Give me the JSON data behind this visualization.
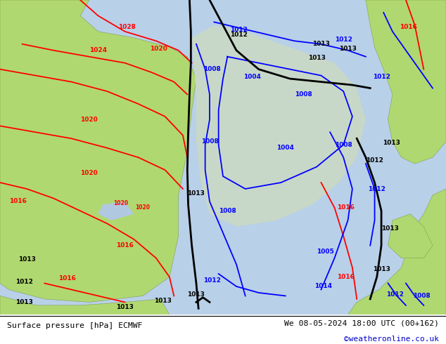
{
  "title_left": "Surface pressure [hPa] ECMWF",
  "title_right": "We 08-05-2024 18:00 UTC (00+162)",
  "watermark": "©weatheronline.co.uk",
  "footer_bg": "#ffffff",
  "map_sea_color": "#b8d0e8",
  "map_land_green": "#b0d870",
  "watermark_color": "#0000cc",
  "figsize": [
    6.34,
    4.9
  ]
}
